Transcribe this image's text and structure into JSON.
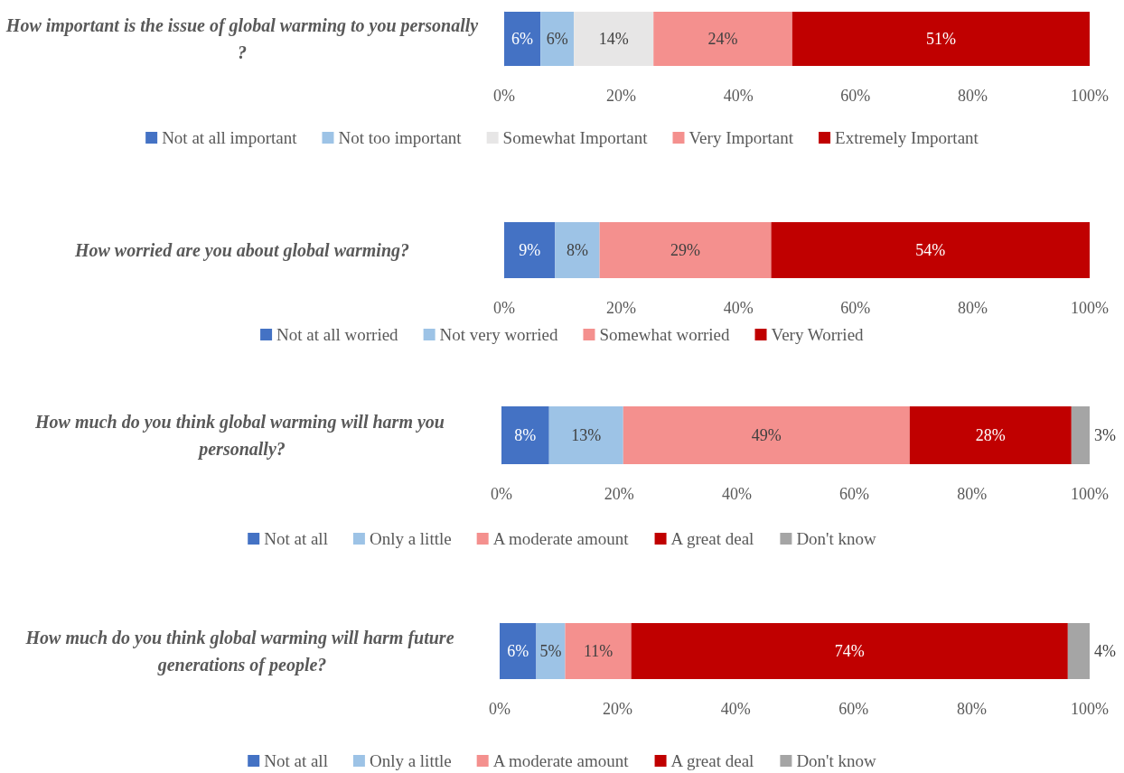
{
  "chart_data": [
    {
      "type": "bar",
      "orientation": "horizontal",
      "stacked": true,
      "categories": [
        "How important is the issue of global warming to you personally?"
      ],
      "xlim": [
        0,
        100
      ],
      "xticks": [
        {
          "value": 0,
          "label": "0%"
        },
        {
          "value": 20,
          "label": "20%"
        },
        {
          "value": 40,
          "label": "40%"
        },
        {
          "value": 60,
          "label": "60%"
        },
        {
          "value": 80,
          "label": "80%"
        },
        {
          "value": 100,
          "label": "100%"
        }
      ],
      "grid": false,
      "legend": "bottom",
      "series": [
        {
          "name": "Not at all important",
          "color": "#4472c4",
          "values": [
            6.2
          ],
          "value_labels": [
            "6%"
          ]
        },
        {
          "name": "Not too important",
          "color": "#9dc3e6",
          "values": [
            5.7
          ],
          "value_labels": [
            "6%"
          ]
        },
        {
          "name": "Somewhat Important",
          "color": "#e7e6e6",
          "values": [
            13.6
          ],
          "value_labels": [
            "14%"
          ]
        },
        {
          "name": "Very Important",
          "color": "#f4908e",
          "values": [
            23.7
          ],
          "value_labels": [
            "24%"
          ]
        },
        {
          "name": "Extremely Important",
          "color": "#c00000",
          "values": [
            50.8
          ],
          "value_labels": [
            "51%"
          ]
        }
      ]
    },
    {
      "type": "bar",
      "orientation": "horizontal",
      "stacked": true,
      "categories": [
        "How worried are you about global warming?"
      ],
      "xlim": [
        0,
        100
      ],
      "xticks": [
        {
          "value": 0,
          "label": "0%"
        },
        {
          "value": 20,
          "label": "20%"
        },
        {
          "value": 40,
          "label": "40%"
        },
        {
          "value": 60,
          "label": "60%"
        },
        {
          "value": 80,
          "label": "80%"
        },
        {
          "value": 100,
          "label": "100%"
        }
      ],
      "grid": false,
      "legend": "bottom",
      "series": [
        {
          "name": "Not at all worried",
          "color": "#4472c4",
          "values": [
            8.7
          ],
          "value_labels": [
            "9%"
          ]
        },
        {
          "name": "Not very worried",
          "color": "#9dc3e6",
          "values": [
            7.6
          ],
          "value_labels": [
            "8%"
          ]
        },
        {
          "name": "Somewhat worried",
          "color": "#f4908e",
          "values": [
            29.3
          ],
          "value_labels": [
            "29%"
          ]
        },
        {
          "name": "Very Worried",
          "color": "#c00000",
          "values": [
            54.4
          ],
          "value_labels": [
            "54%"
          ]
        }
      ]
    },
    {
      "type": "bar",
      "orientation": "horizontal",
      "stacked": true,
      "categories": [
        "How much do you think global warming will harm you personally?"
      ],
      "xlim": [
        0,
        100
      ],
      "xticks": [
        {
          "value": 0,
          "label": "0%"
        },
        {
          "value": 20,
          "label": "20%"
        },
        {
          "value": 40,
          "label": "40%"
        },
        {
          "value": 60,
          "label": "60%"
        },
        {
          "value": 80,
          "label": "80%"
        },
        {
          "value": 100,
          "label": "100%"
        }
      ],
      "grid": false,
      "legend": "bottom",
      "series": [
        {
          "name": "Not at all",
          "color": "#4472c4",
          "values": [
            8.1
          ],
          "value_labels": [
            "8%"
          ]
        },
        {
          "name": "Only a little",
          "color": "#9dc3e6",
          "values": [
            12.6
          ],
          "value_labels": [
            "13%"
          ]
        },
        {
          "name": "A moderate amount",
          "color": "#f4908e",
          "values": [
            48.7
          ],
          "value_labels": [
            "49%"
          ]
        },
        {
          "name": "A great deal",
          "color": "#c00000",
          "values": [
            27.5
          ],
          "value_labels": [
            "28%"
          ]
        },
        {
          "name": "Don't know",
          "color": "#a5a5a5",
          "values": [
            3.1
          ],
          "value_labels": [
            "3%"
          ]
        }
      ]
    },
    {
      "type": "bar",
      "orientation": "horizontal",
      "stacked": true,
      "categories": [
        "How much do you think global warming will harm future generations of people?"
      ],
      "xlim": [
        0,
        100
      ],
      "xticks": [
        {
          "value": 0,
          "label": "0%"
        },
        {
          "value": 20,
          "label": "20%"
        },
        {
          "value": 40,
          "label": "40%"
        },
        {
          "value": 60,
          "label": "60%"
        },
        {
          "value": 80,
          "label": "80%"
        },
        {
          "value": 100,
          "label": "100%"
        }
      ],
      "grid": false,
      "legend": "bottom",
      "series": [
        {
          "name": "Not at all",
          "color": "#4472c4",
          "values": [
            6.2
          ],
          "value_labels": [
            "6%"
          ]
        },
        {
          "name": "Only a little",
          "color": "#9dc3e6",
          "values": [
            4.9
          ],
          "value_labels": [
            "5%"
          ]
        },
        {
          "name": "A moderate amount",
          "color": "#f4908e",
          "values": [
            11.2
          ],
          "value_labels": [
            "11%"
          ]
        },
        {
          "name": "A great deal",
          "color": "#c00000",
          "values": [
            74.0
          ],
          "value_labels": [
            "74%"
          ]
        },
        {
          "name": "Don't know",
          "color": "#a5a5a5",
          "values": [
            3.7
          ],
          "value_labels": [
            "4%"
          ]
        }
      ]
    }
  ]
}
